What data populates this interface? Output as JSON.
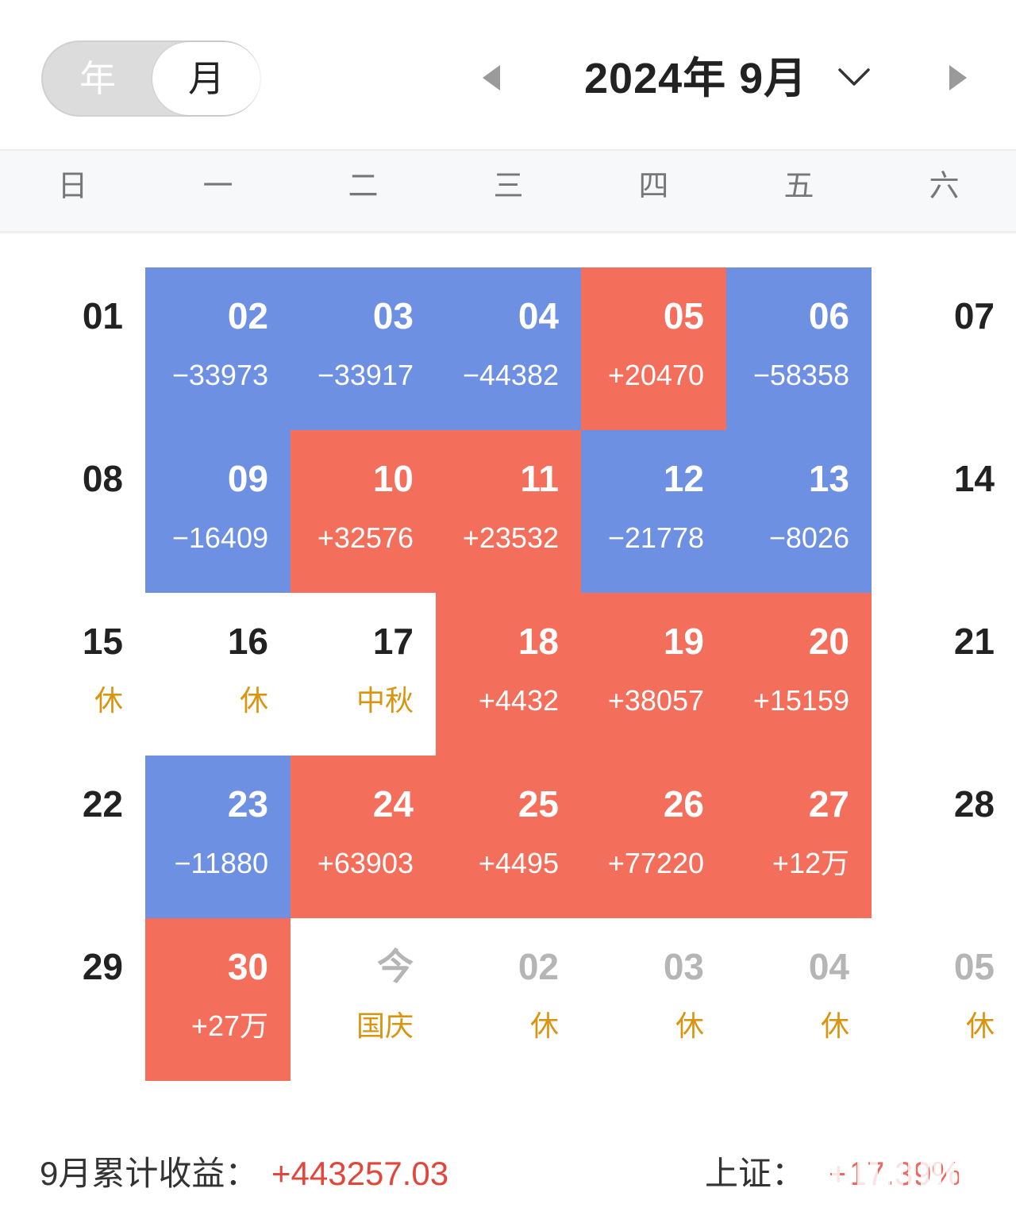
{
  "toggle": {
    "year_label": "年",
    "month_label": "月",
    "selected": "月"
  },
  "header": {
    "title": "2024年 9月"
  },
  "weekdays": [
    "日",
    "一",
    "二",
    "三",
    "四",
    "五",
    "六"
  ],
  "colors": {
    "loss": "#6e90e2",
    "gain": "#f36f5b",
    "holiday_text": "#d9950f",
    "total_text": "#e2463a"
  },
  "weeks": [
    [
      {
        "day": "01",
        "sub": "",
        "type": "none"
      },
      {
        "day": "02",
        "sub": "−33973",
        "type": "blue"
      },
      {
        "day": "03",
        "sub": "−33917",
        "type": "blue"
      },
      {
        "day": "04",
        "sub": "−44382",
        "type": "blue"
      },
      {
        "day": "05",
        "sub": "+20470",
        "type": "red"
      },
      {
        "day": "06",
        "sub": "−58358",
        "type": "blue"
      },
      {
        "day": "07",
        "sub": "",
        "type": "none"
      }
    ],
    [
      {
        "day": "08",
        "sub": "",
        "type": "none"
      },
      {
        "day": "09",
        "sub": "−16409",
        "type": "blue"
      },
      {
        "day": "10",
        "sub": "+32576",
        "type": "red"
      },
      {
        "day": "11",
        "sub": "+23532",
        "type": "red"
      },
      {
        "day": "12",
        "sub": "−21778",
        "type": "blue"
      },
      {
        "day": "13",
        "sub": "−8026",
        "type": "blue"
      },
      {
        "day": "14",
        "sub": "",
        "type": "none"
      }
    ],
    [
      {
        "day": "15",
        "sub": "休",
        "type": "holiday"
      },
      {
        "day": "16",
        "sub": "休",
        "type": "holiday"
      },
      {
        "day": "17",
        "sub": "中秋",
        "type": "holiday"
      },
      {
        "day": "18",
        "sub": "+4432",
        "type": "red"
      },
      {
        "day": "19",
        "sub": "+38057",
        "type": "red"
      },
      {
        "day": "20",
        "sub": "+15159",
        "type": "red"
      },
      {
        "day": "21",
        "sub": "",
        "type": "none"
      }
    ],
    [
      {
        "day": "22",
        "sub": "",
        "type": "none"
      },
      {
        "day": "23",
        "sub": "−11880",
        "type": "blue"
      },
      {
        "day": "24",
        "sub": "+63903",
        "type": "red"
      },
      {
        "day": "25",
        "sub": "+4495",
        "type": "red"
      },
      {
        "day": "26",
        "sub": "+77220",
        "type": "red"
      },
      {
        "day": "27",
        "sub": "+12万",
        "type": "red"
      },
      {
        "day": "28",
        "sub": "",
        "type": "none"
      }
    ],
    [
      {
        "day": "29",
        "sub": "",
        "type": "none"
      },
      {
        "day": "30",
        "sub": "+27万",
        "type": "red"
      },
      {
        "day": "今",
        "sub": "国庆",
        "type": "future"
      },
      {
        "day": "02",
        "sub": "休",
        "type": "future"
      },
      {
        "day": "03",
        "sub": "休",
        "type": "future"
      },
      {
        "day": "04",
        "sub": "休",
        "type": "future"
      },
      {
        "day": "05",
        "sub": "休",
        "type": "future"
      }
    ]
  ],
  "footer": {
    "total_label": "9月累计收益：",
    "total_value": "+443257.03",
    "index_label": "上证：",
    "index_value": "+17.39%"
  }
}
